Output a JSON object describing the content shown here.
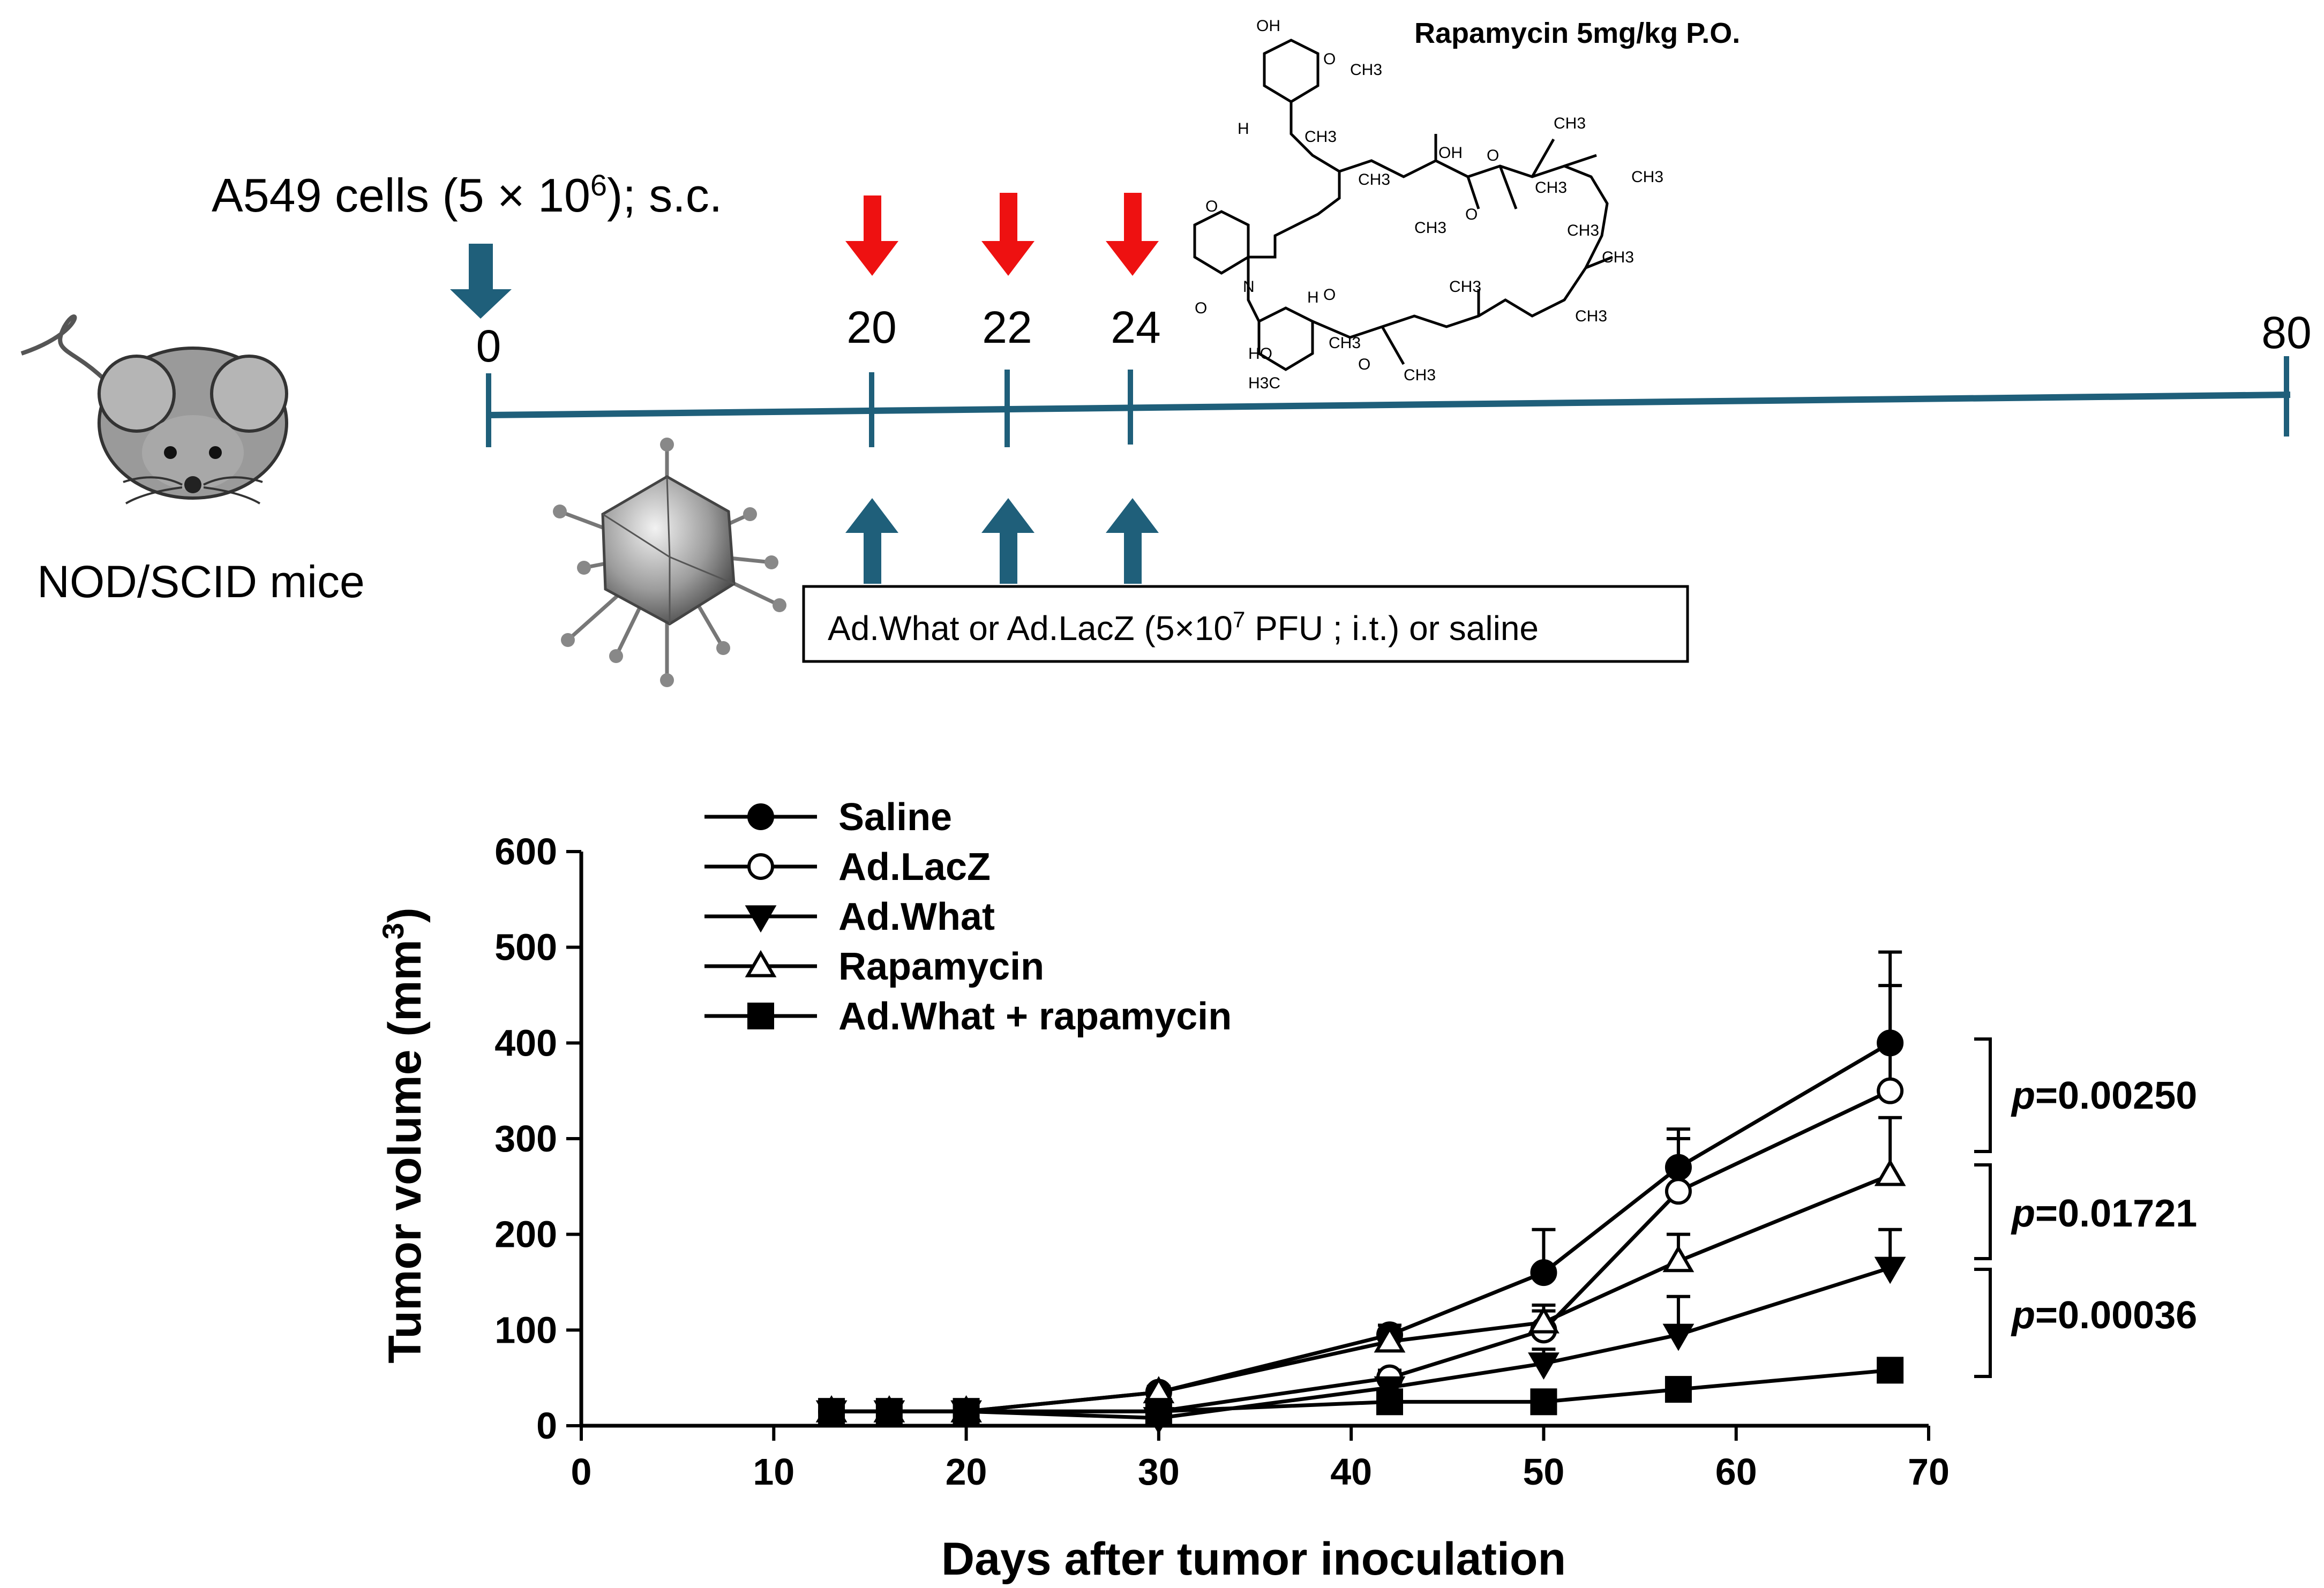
{
  "protocol": {
    "mouse_label": "NOD/SCID mice",
    "cells_label_prefix": "A549 cells (5 × 10",
    "cells_label_exp": "6",
    "cells_label_suffix": "); s.c.",
    "rapamycin_label": "Rapamycin 5mg/kg P.O.",
    "treatment_label_prefix": "Ad.What or Ad.LacZ (5×10",
    "treatment_label_exp": "7",
    "treatment_label_suffix": " PFU ; i.t.) or saline",
    "timeline_days": [
      "0",
      "20",
      "22",
      "24",
      "80"
    ],
    "colors": {
      "timeline": "#1f5f7a",
      "rapamycin_arrow": "#ee1111",
      "virus_arrow": "#1f5f7a",
      "mouse_body": "#9a9a9a"
    },
    "molecule_atoms": [
      "OH",
      "O",
      "CH3",
      "H",
      "N",
      "HO",
      "H3C",
      "CH3",
      "CH3",
      "CH3",
      "OH",
      "O",
      "CH3",
      "CH3",
      "O",
      "CH3",
      "CH3",
      "CH3",
      "CH3",
      "O",
      "CH3",
      "O",
      "CH3",
      "O",
      "O",
      "H",
      "CH3"
    ]
  },
  "chart_data": {
    "type": "line",
    "xlabel": "Days after tumor inoculation",
    "ylabel_prefix": "Tumor volume (mm",
    "ylabel_exp": "3",
    "ylabel_suffix": ")",
    "xlim": [
      0,
      70
    ],
    "ylim": [
      0,
      600
    ],
    "xticks": [
      "0",
      "10",
      "20",
      "30",
      "40",
      "50",
      "60",
      "70"
    ],
    "yticks": [
      "0",
      "100",
      "200",
      "300",
      "400",
      "500",
      "600"
    ],
    "grid": false,
    "legend_placement": "top-left",
    "x": [
      13,
      16,
      20,
      30,
      42,
      50,
      57,
      68
    ],
    "series": [
      {
        "name": "Saline",
        "marker": "circle-filled",
        "values": [
          15,
          15,
          15,
          35,
          95,
          160,
          270,
          400
        ],
        "errors": [
          4,
          4,
          4,
          6,
          10,
          45,
          40,
          95
        ]
      },
      {
        "name": "Ad.LacZ",
        "marker": "circle-open",
        "values": [
          15,
          15,
          15,
          15,
          50,
          100,
          245,
          350
        ],
        "errors": [
          4,
          4,
          4,
          4,
          8,
          20,
          55,
          110
        ]
      },
      {
        "name": "Ad.What",
        "marker": "triangle-down-filled",
        "values": [
          15,
          15,
          15,
          8,
          40,
          65,
          95,
          165
        ],
        "errors": [
          4,
          4,
          4,
          3,
          6,
          15,
          40,
          40
        ]
      },
      {
        "name": "Rapamycin",
        "marker": "triangle-up-open",
        "values": [
          15,
          15,
          15,
          35,
          88,
          108,
          172,
          262
        ],
        "errors": [
          4,
          4,
          4,
          6,
          10,
          18,
          28,
          60
        ]
      },
      {
        "name": "Ad.What + rapamycin",
        "marker": "square-filled",
        "values": [
          15,
          15,
          15,
          15,
          25,
          25,
          38,
          58
        ],
        "errors": [
          4,
          4,
          4,
          3,
          6,
          5,
          8,
          10
        ]
      }
    ],
    "annotations": [
      {
        "prefix": "p",
        "text": "=0.00250"
      },
      {
        "prefix": "p",
        "text": "=0.01721"
      },
      {
        "prefix": "p",
        "text": "=0.00036"
      }
    ]
  }
}
